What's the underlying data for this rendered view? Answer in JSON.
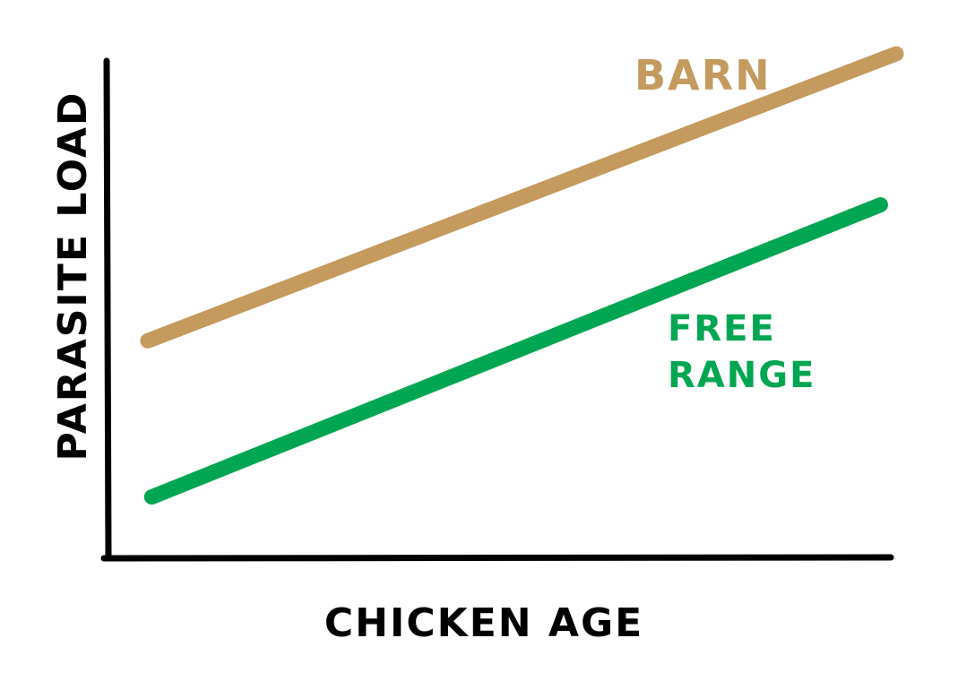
{
  "chart_data": {
    "type": "line",
    "title": "",
    "xlabel": "CHICKEN AGE",
    "ylabel": "PARASITE LOAD",
    "x_ticks_shown": false,
    "y_ticks_shown": false,
    "grid": false,
    "xlim": [
      0,
      10
    ],
    "ylim": [
      0,
      10
    ],
    "series": [
      {
        "name": "BARN",
        "label_lines": [
          "BARN"
        ],
        "color": "#c49a5e",
        "x": [
          0.5,
          10.0
        ],
        "y": [
          4.3,
          10.0
        ]
      },
      {
        "name": "FREE RANGE",
        "label_lines": [
          "FREE",
          "RANGE"
        ],
        "color": "#00a651",
        "x": [
          0.55,
          9.8
        ],
        "y": [
          1.2,
          7.0
        ]
      }
    ],
    "axis_color": "#000000"
  }
}
